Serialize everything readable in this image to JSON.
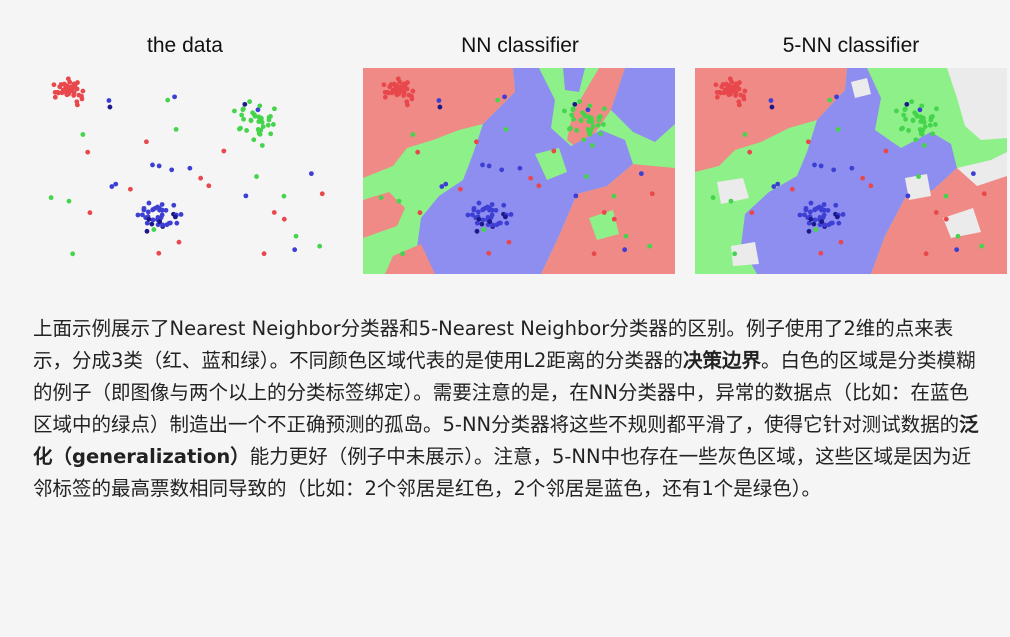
{
  "figure": {
    "titles": [
      "the data",
      "NN classifier",
      "5-NN classifier"
    ],
    "colors": {
      "red_point": "#e8474c",
      "green_point": "#45d44c",
      "blue_point": "#3d3fd4",
      "dark_blue_point": "#1c1a8a",
      "red_region": "#f08a86",
      "green_region": "#8df089",
      "blue_region": "#8e8ef0",
      "gray_region": "#ebebeb"
    }
  },
  "caption": {
    "p1": "上面示例展示了Nearest Neighbor分类器和5-Nearest Neighbor分类器的区别。例子使用了2维的点来表示，分成3类（红、蓝和绿）。不同颜色区域代表的是使用L2距离的分类器的",
    "b1": "决策边界",
    "p2": "。白色的区域是分类模糊的例子（即图像与两个以上的分类标签绑定）。需要注意的是，在NN分类器中，异常的数据点（比如：在蓝色区域中的绿点）制造出一个不正确预测的孤岛。5-NN分类器将这些不规则都平滑了，使得它针对测试数据的",
    "b2": "泛化（generalization）",
    "p3": "能力更好（例子中未展示）。注意，5-NN中也存在一些灰色区域，这些区域是因为近邻标签的最高票数相同导致的（比如：2个邻居是红色，2个邻居是蓝色，还有1个是绿色）。"
  }
}
